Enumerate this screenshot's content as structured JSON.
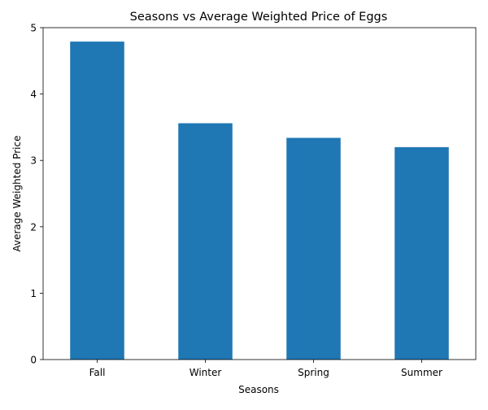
{
  "chart_data": {
    "type": "bar",
    "title": "Seasons vs Average Weighted Price of Eggs",
    "xlabel": "Seasons",
    "ylabel": "Average Weighted Price",
    "categories": [
      "Fall",
      "Winter",
      "Spring",
      "Summer"
    ],
    "values": [
      4.79,
      3.56,
      3.34,
      3.2
    ],
    "ylim": [
      0,
      5
    ],
    "yticks": [
      "0",
      "1",
      "2",
      "3",
      "4",
      "5"
    ],
    "bar_color": "#1f77b4",
    "grid": false,
    "legend": "none"
  }
}
